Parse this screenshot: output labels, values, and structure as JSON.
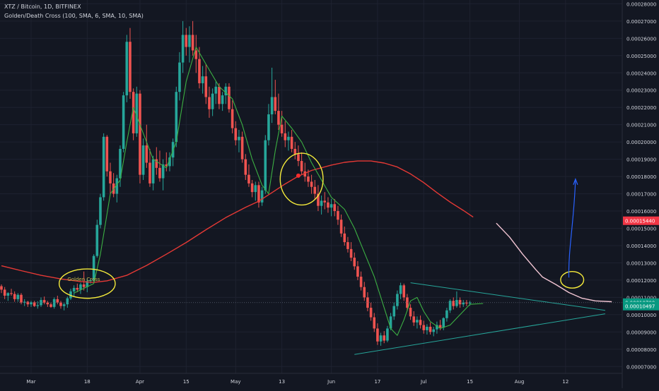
{
  "header": {
    "title": "XTZ / Bitcoin, 1D, BITFINEX",
    "indicator": "Golden/Death Cross (100, SMA, 6, SMA, 10, SMA)"
  },
  "annotation": {
    "golden_cross": "Golden Cross"
  },
  "colors": {
    "background": "#131722",
    "up": "#26a69a",
    "down": "#ef5350",
    "sma_long": "#e53935",
    "sma_short": "#3cb043",
    "annotation": "#f5eb3b",
    "projection": "#f3c6d4",
    "arrow": "#2962ff",
    "trendline": "#26a69a",
    "axis_text": "#d1d4dc"
  },
  "chart_data": {
    "type": "candlestick",
    "x_tick_labels": [
      "Mar",
      "18",
      "Apr",
      "15",
      "May",
      "13",
      "Jun",
      "17",
      "Jul",
      "15",
      "Aug",
      "12"
    ],
    "y_tick_labels": [
      "0.00007000",
      "0.00008000",
      "0.00009000",
      "0.00010000",
      "0.00011000",
      "0.00012000",
      "0.00013000",
      "0.00014000",
      "0.00015000",
      "0.00016000",
      "0.00017000",
      "0.00018000",
      "0.00019000",
      "0.00020000",
      "0.00021000",
      "0.00022000",
      "0.00023000",
      "0.00024000",
      "0.00025000",
      "0.00026000",
      "0.00027000",
      "0.00028000"
    ],
    "ylim": [
      6.93e-05,
      0.0002822
    ],
    "price_labels": [
      {
        "text": "0.00015440",
        "value": 0.0001544,
        "color": "#f23645"
      },
      {
        "text": "0.00010700",
        "value": 0.000107,
        "color": "#089981"
      },
      {
        "text": "0.00010497",
        "value": 0.00010497,
        "color": "#089981"
      }
    ],
    "candles": [
      [
        0.0001165,
        0.0001175,
        0.0001125,
        0.0001145
      ],
      [
        0.0001145,
        0.000116,
        0.000109,
        0.000111
      ],
      [
        0.000111,
        0.000113,
        0.000108,
        0.0001125
      ],
      [
        0.0001125,
        0.000115,
        0.000111,
        0.000112
      ],
      [
        0.000112,
        0.0001135,
        0.0001075,
        0.000109
      ],
      [
        0.000109,
        0.0001125,
        0.0001075,
        0.0001115
      ],
      [
        0.0001115,
        0.0001125,
        0.000106,
        0.000107
      ],
      [
        0.000107,
        0.000109,
        0.000105,
        0.0001075
      ],
      [
        0.0001075,
        0.000108,
        0.0001045,
        0.000106
      ],
      [
        0.000106,
        0.000108,
        0.0001045,
        0.0001072
      ],
      [
        0.0001072,
        0.000108,
        0.0001045,
        0.000105
      ],
      [
        0.000105,
        0.0001078,
        0.0001035,
        0.0001055
      ],
      [
        0.0001055,
        0.00011,
        0.0001045,
        0.0001085
      ],
      [
        0.0001085,
        0.0001105,
        0.000106,
        0.000107
      ],
      [
        0.000107,
        0.000108,
        0.0001045,
        0.000106
      ],
      [
        0.000106,
        0.000107,
        0.000104,
        0.0001045
      ],
      [
        0.0001045,
        0.00011,
        0.0001035,
        0.000109
      ],
      [
        0.000109,
        0.000111,
        0.000106,
        0.000107
      ],
      [
        0.000107,
        0.000108,
        0.0001035,
        0.000105
      ],
      [
        0.000105,
        0.000107,
        0.0001025,
        0.000106
      ],
      [
        0.000106,
        0.0001105,
        0.000104,
        0.0001095
      ],
      [
        0.0001095,
        0.000115,
        0.0001085,
        0.0001135
      ],
      [
        0.0001135,
        0.000117,
        0.0001105,
        0.0001155
      ],
      [
        0.0001155,
        0.000118,
        0.000113,
        0.0001145
      ],
      [
        0.0001145,
        0.0001185,
        0.000112,
        0.0001175
      ],
      [
        0.0001175,
        0.000125,
        0.000114,
        0.000116
      ],
      [
        0.000116,
        0.000121,
        0.000113,
        0.0001195
      ],
      [
        0.0001195,
        0.000121,
        0.000118,
        0.00012
      ],
      [
        0.00012,
        0.000135,
        0.000119,
        0.000134
      ],
      [
        0.000134,
        0.000155,
        0.000133,
        0.000152
      ],
      [
        0.000152,
        0.00017,
        0.00015,
        0.000168
      ],
      [
        0.000168,
        0.000205,
        0.000166,
        0.000203
      ],
      [
        0.000203,
        0.000204,
        0.00018,
        0.000183
      ],
      [
        0.000183,
        0.000188,
        0.00017,
        0.000176
      ],
      [
        0.000176,
        0.000182,
        0.000168,
        0.00017
      ],
      [
        0.00017,
        0.000181,
        0.000165,
        0.000179
      ],
      [
        0.000179,
        0.000198,
        0.000174,
        0.000196
      ],
      [
        0.000196,
        0.000229,
        0.000194,
        0.000227
      ],
      [
        0.000227,
        0.000262,
        0.000223,
        0.000258
      ],
      [
        0.000258,
        0.000266,
        0.000225,
        0.000229
      ],
      [
        0.000229,
        0.000231,
        0.000201,
        0.000205
      ],
      [
        0.000205,
        0.000232,
        0.000203,
        0.000228
      ],
      [
        0.000228,
        0.00023,
        0.000176,
        0.000181
      ],
      [
        0.000181,
        0.000202,
        0.000178,
        0.000198
      ],
      [
        0.000198,
        0.00021,
        0.000185,
        0.000188
      ],
      [
        0.000188,
        0.000196,
        0.000174,
        0.000176
      ],
      [
        0.000176,
        0.000192,
        0.000172,
        0.00019
      ],
      [
        0.00019,
        0.000197,
        0.000181,
        0.000185
      ],
      [
        0.000185,
        0.000195,
        0.000177,
        0.000179
      ],
      [
        0.000179,
        0.00019,
        0.000172,
        0.000187
      ],
      [
        0.000187,
        0.000194,
        0.000183,
        0.000186
      ],
      [
        0.000186,
        0.000194,
        0.000183,
        0.000191
      ],
      [
        0.000191,
        0.000202,
        0.000186,
        0.0002
      ],
      [
        0.0002,
        0.000232,
        0.000197,
        0.000229
      ],
      [
        0.000229,
        0.000252,
        0.000224,
        0.000246
      ],
      [
        0.000246,
        0.00027,
        0.00024,
        0.000262
      ],
      [
        0.000262,
        0.000266,
        0.00025,
        0.000255
      ],
      [
        0.000255,
        0.000267,
        0.000246,
        0.000262
      ],
      [
        0.000262,
        0.00027,
        0.00025,
        0.000253
      ],
      [
        0.000253,
        0.000262,
        0.00024,
        0.000248
      ],
      [
        0.000248,
        0.000255,
        0.000231,
        0.000234
      ],
      [
        0.000234,
        0.000244,
        0.000228,
        0.000238
      ],
      [
        0.000238,
        0.000245,
        0.000222,
        0.000226
      ],
      [
        0.000226,
        0.000232,
        0.000214,
        0.000219
      ],
      [
        0.000219,
        0.000231,
        0.000215,
        0.000228
      ],
      [
        0.000228,
        0.000235,
        0.000222,
        0.000232
      ],
      [
        0.000232,
        0.000234,
        0.000219,
        0.000222
      ],
      [
        0.000222,
        0.000229,
        0.000218,
        0.000227
      ],
      [
        0.000227,
        0.000234,
        0.000222,
        0.000232
      ],
      [
        0.000232,
        0.000234,
        0.000217,
        0.000219
      ],
      [
        0.000219,
        0.000224,
        0.000205,
        0.000208
      ],
      [
        0.000208,
        0.000212,
        0.000198,
        0.000201
      ],
      [
        0.000201,
        0.000207,
        0.000194,
        0.000203
      ],
      [
        0.000203,
        0.000206,
        0.000188,
        0.00019
      ],
      [
        0.00019,
        0.000193,
        0.000178,
        0.000181
      ],
      [
        0.000181,
        0.000187,
        0.000174,
        0.000176
      ],
      [
        0.000176,
        0.000178,
        0.000168,
        0.000171
      ],
      [
        0.000171,
        0.000177,
        0.000166,
        0.000175
      ],
      [
        0.000175,
        0.000177,
        0.000162,
        0.000165
      ],
      [
        0.000165,
        0.000174,
        0.000163,
        0.000172
      ],
      [
        0.000172,
        0.000204,
        0.00017,
        0.000201
      ],
      [
        0.000201,
        0.000222,
        0.000198,
        0.000216
      ],
      [
        0.000216,
        0.000243,
        0.000211,
        0.000226
      ],
      [
        0.000226,
        0.000236,
        0.000216,
        0.000218
      ],
      [
        0.000218,
        0.000228,
        0.000207,
        0.00021
      ],
      [
        0.00021,
        0.000218,
        0.000203,
        0.000205
      ],
      [
        0.000205,
        0.000212,
        0.000197,
        0.000201
      ],
      [
        0.000201,
        0.000206,
        0.000195,
        0.000203
      ],
      [
        0.000203,
        0.000207,
        0.000194,
        0.000196
      ],
      [
        0.000196,
        0.0002,
        0.00019,
        0.000193
      ],
      [
        0.000193,
        0.000198,
        0.000186,
        0.000189
      ],
      [
        0.000189,
        0.000194,
        0.000181,
        0.000183
      ],
      [
        0.000183,
        0.000188,
        0.000177,
        0.00018
      ],
      [
        0.00018,
        0.000184,
        0.000174,
        0.000177
      ],
      [
        0.000177,
        0.000181,
        0.00017,
        0.000174
      ],
      [
        0.000174,
        0.000178,
        0.000167,
        0.00017
      ],
      [
        0.00017,
        0.000175,
        0.00016,
        0.000163
      ],
      [
        0.000163,
        0.000169,
        0.000158,
        0.000166
      ],
      [
        0.000166,
        0.000171,
        0.000161,
        0.000165
      ],
      [
        0.000165,
        0.000168,
        0.000159,
        0.000162
      ],
      [
        0.000162,
        0.000167,
        0.000157,
        0.000164
      ],
      [
        0.000164,
        0.000167,
        0.000157,
        0.00016
      ],
      [
        0.00016,
        0.000163,
        0.000152,
        0.000155
      ],
      [
        0.000155,
        0.000158,
        0.000145,
        0.000147
      ],
      [
        0.000147,
        0.000151,
        0.00014,
        0.000142
      ],
      [
        0.000142,
        0.000145,
        0.000136,
        0.000138
      ],
      [
        0.000138,
        0.000142,
        0.000131,
        0.000133
      ],
      [
        0.000133,
        0.000136,
        0.000126,
        0.000128
      ],
      [
        0.000128,
        0.000131,
        0.00012,
        0.000122
      ],
      [
        0.000122,
        0.000125,
        0.000114,
        0.000116
      ],
      [
        0.000116,
        0.000119,
        0.000108,
        0.00011
      ],
      [
        0.00011,
        0.000113,
        0.000102,
        0.000104
      ],
      [
        0.000104,
        0.000107,
        9.65e-05,
        9.85e-05
      ],
      [
        9.85e-05,
        0.000101,
        9e-05,
        9.2e-05
      ],
      [
        9.2e-05,
        9.5e-05,
        8.25e-05,
        8.45e-05
      ],
      [
        8.45e-05,
        8.95e-05,
        8.2e-05,
        8.8e-05
      ],
      [
        8.8e-05,
        9.05e-05,
        8.35e-05,
        8.5e-05
      ],
      [
        8.5e-05,
        9.35e-05,
        8.4e-05,
        9.2e-05
      ],
      [
        9.2e-05,
        0.000101,
        9.1e-05,
        9.9e-05
      ],
      [
        9.9e-05,
        0.000107,
        9.7e-05,
        0.000105
      ],
      [
        0.000105,
        0.000114,
        0.000103,
        0.000112
      ],
      [
        0.000112,
        0.0001185,
        0.000109,
        0.000117
      ],
      [
        0.000117,
        0.000118,
        0.000108,
        0.00011
      ],
      [
        0.00011,
        0.000112,
        0.000102,
        0.000104
      ],
      [
        0.000104,
        0.000106,
        9.7e-05,
        9.9e-05
      ],
      [
        9.9e-05,
        0.000102,
        9.35e-05,
        9.55e-05
      ],
      [
        9.55e-05,
        9.9e-05,
        9.2e-05,
        9.7e-05
      ],
      [
        9.7e-05,
        9.95e-05,
        9.2e-05,
        9.4e-05
      ],
      [
        9.4e-05,
        9.65e-05,
        8.9e-05,
        9.1e-05
      ],
      [
        9.1e-05,
        9.45e-05,
        8.85e-05,
        9.3e-05
      ],
      [
        9.3e-05,
        9.55e-05,
        8.85e-05,
        9e-05
      ],
      [
        9e-05,
        9.3e-05,
        8.75e-05,
        9.15e-05
      ],
      [
        9.15e-05,
        9.6e-05,
        8.9e-05,
        9.4e-05
      ],
      [
        9.4e-05,
        9.7e-05,
        9.1e-05,
        9.25e-05
      ],
      [
        9.25e-05,
        9.85e-05,
        9.1e-05,
        9.8e-05
      ],
      [
        9.8e-05,
        0.000104,
        9.6e-05,
        0.0001025
      ],
      [
        0.0001025,
        0.000109,
        0.000101,
        0.000108
      ],
      [
        0.000108,
        0.00011,
        0.000103,
        0.000105
      ],
      [
        0.000105,
        0.0001135,
        0.000104,
        0.0001085
      ],
      [
        0.0001085,
        0.00011,
        0.000104,
        0.000106
      ],
      [
        0.000106,
        0.0001085,
        0.0001045,
        0.000107
      ],
      [
        0.000107,
        0.0001085,
        0.000105,
        0.0001065
      ],
      [
        0.0001065,
        0.000108,
        0.0001052,
        0.000107
      ]
    ],
    "sma_100": [
      [
        0,
        0.0001283
      ],
      [
        6,
        0.0001255
      ],
      [
        12,
        0.0001228
      ],
      [
        18,
        0.0001207
      ],
      [
        24,
        0.0001192
      ],
      [
        28,
        0.0001187
      ],
      [
        32,
        0.0001196
      ],
      [
        38,
        0.0001228
      ],
      [
        44,
        0.0001285
      ],
      [
        50,
        0.000135
      ],
      [
        56,
        0.0001418
      ],
      [
        62,
        0.0001492
      ],
      [
        68,
        0.0001562
      ],
      [
        74,
        0.0001622
      ],
      [
        78,
        0.0001657
      ],
      [
        82,
        0.0001707
      ],
      [
        86,
        0.0001757
      ],
      [
        90,
        0.0001802
      ],
      [
        94,
        0.0001835
      ],
      [
        100,
        0.0001866
      ],
      [
        104,
        0.0001882
      ],
      [
        108,
        0.000189
      ],
      [
        112,
        0.000189
      ],
      [
        116,
        0.0001878
      ],
      [
        120,
        0.0001855
      ],
      [
        124,
        0.0001815
      ],
      [
        128,
        0.0001765
      ],
      [
        132,
        0.0001707
      ],
      [
        136,
        0.0001652
      ],
      [
        140,
        0.0001604
      ],
      [
        143,
        0.0001565
      ]
    ],
    "sma_short": [
      [
        22,
        0.0001125
      ],
      [
        28,
        0.000118
      ],
      [
        30,
        0.000135
      ],
      [
        33,
        0.00017
      ],
      [
        36,
        0.000178
      ],
      [
        38,
        0.0002
      ],
      [
        40,
        0.00022
      ],
      [
        43,
        0.000205
      ],
      [
        46,
        0.00019
      ],
      [
        50,
        0.000185
      ],
      [
        53,
        0.0002
      ],
      [
        56,
        0.000235
      ],
      [
        59,
        0.000255
      ],
      [
        62,
        0.000245
      ],
      [
        66,
        0.000232
      ],
      [
        70,
        0.000225
      ],
      [
        73,
        0.00021
      ],
      [
        76,
        0.00019
      ],
      [
        79,
        0.000175
      ],
      [
        81,
        0.00017
      ],
      [
        83,
        0.000195
      ],
      [
        85,
        0.000215
      ],
      [
        88,
        0.000208
      ],
      [
        91,
        0.0002
      ],
      [
        94,
        0.000188
      ],
      [
        97,
        0.000178
      ],
      [
        100,
        0.000168
      ],
      [
        104,
        0.000161
      ],
      [
        107,
        0.00015
      ],
      [
        110,
        0.000136
      ],
      [
        113,
        0.000122
      ],
      [
        116,
        0.000104
      ],
      [
        118,
        9.2e-05
      ],
      [
        120,
        8.8e-05
      ],
      [
        122,
        9.7e-05
      ],
      [
        124,
        0.000108
      ],
      [
        126,
        0.00011
      ],
      [
        128,
        0.000102
      ],
      [
        130,
        9.6e-05
      ],
      [
        133,
        9.2e-05
      ],
      [
        136,
        9.4e-05
      ],
      [
        139,
        0.0001
      ],
      [
        142,
        0.000106
      ],
      [
        146,
        0.0001065
      ]
    ],
    "projection": [
      [
        150,
        0.000153
      ],
      [
        154,
        0.000145
      ],
      [
        158,
        0.000135
      ],
      [
        162,
        0.000126
      ],
      [
        164,
        0.0001218
      ],
      [
        168,
        0.0001175
      ],
      [
        172,
        0.0001128
      ],
      [
        176,
        0.0001095
      ],
      [
        180,
        0.000108
      ],
      [
        185,
        0.0001075
      ]
    ],
    "triangle_upper": [
      [
        124,
        0.0001185
      ],
      [
        183,
        0.0001025
      ]
    ],
    "triangle_lower": [
      [
        107,
        7.7e-05
      ],
      [
        183,
        0.0001005
      ]
    ],
    "arrow": {
      "from": [
        172,
        0.0001215
      ],
      "to": [
        174,
        0.0001785
      ]
    },
    "circles": [
      {
        "center": [
          26,
          0.000118
        ],
        "rx_bars": 8.5,
        "ry_value": 8.5e-06,
        "label": "golden-cross"
      },
      {
        "center": [
          91,
          0.0001785
        ],
        "rx_bars": 6.5,
        "ry_value": 1.5e-05,
        "label": "death-cross"
      },
      {
        "center": [
          173,
          0.0001202
        ],
        "rx_bars": 3.5,
        "ry_value": 4.8e-06,
        "label": "target"
      }
    ]
  }
}
